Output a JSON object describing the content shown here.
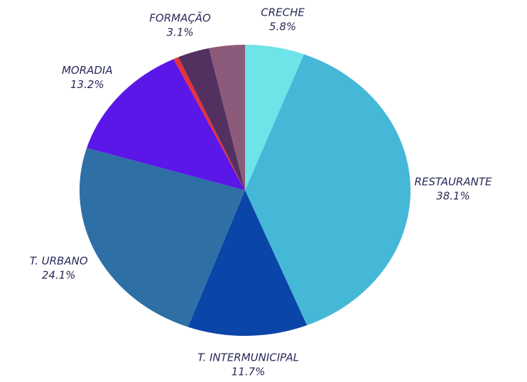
{
  "chart_data": {
    "type": "pie",
    "categories": [
      "CRECHE",
      "RESTAURANTE",
      "T. INTERMUNICIPAL",
      "T. URBANO",
      "MORADIA",
      null,
      "FORMAÇÃO",
      null
    ],
    "values": [
      5.8,
      38.1,
      11.7,
      24.1,
      13.2,
      0.5,
      3.1,
      3.5
    ],
    "value_labels": [
      "5.8%",
      "38.1%",
      "11.7%",
      "24.1%",
      "13.2%",
      null,
      "3.1%",
      null
    ],
    "colors": [
      "#6ee3e8",
      "#45b8d8",
      "#0a45a8",
      "#2e6fa6",
      "#5b17e8",
      "#e8303a",
      "#523060",
      "#8c5a7a"
    ]
  }
}
